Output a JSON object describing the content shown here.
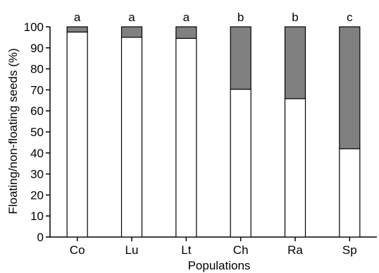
{
  "chart_data": {
    "type": "bar",
    "stacked": true,
    "title": "",
    "xlabel": "Populations",
    "ylabel": "Floating/non-floating seeds (%)",
    "ylim": [
      0,
      100
    ],
    "yticks": [
      0,
      10,
      20,
      30,
      40,
      50,
      60,
      70,
      80,
      90,
      100
    ],
    "categories": [
      "Co",
      "Lu",
      "Lt",
      "Ch",
      "Ra",
      "Sp"
    ],
    "group_letters": [
      "a",
      "a",
      "a",
      "b",
      "b",
      "c"
    ],
    "series": [
      {
        "values": [
          97.5,
          95,
          94.5,
          70.3,
          65.8,
          42
        ],
        "color": "#ffffff"
      },
      {
        "values": [
          2.5,
          5,
          5.5,
          29.7,
          34.2,
          58
        ],
        "color": "#808080"
      }
    ],
    "grid": false,
    "legend": "none"
  }
}
